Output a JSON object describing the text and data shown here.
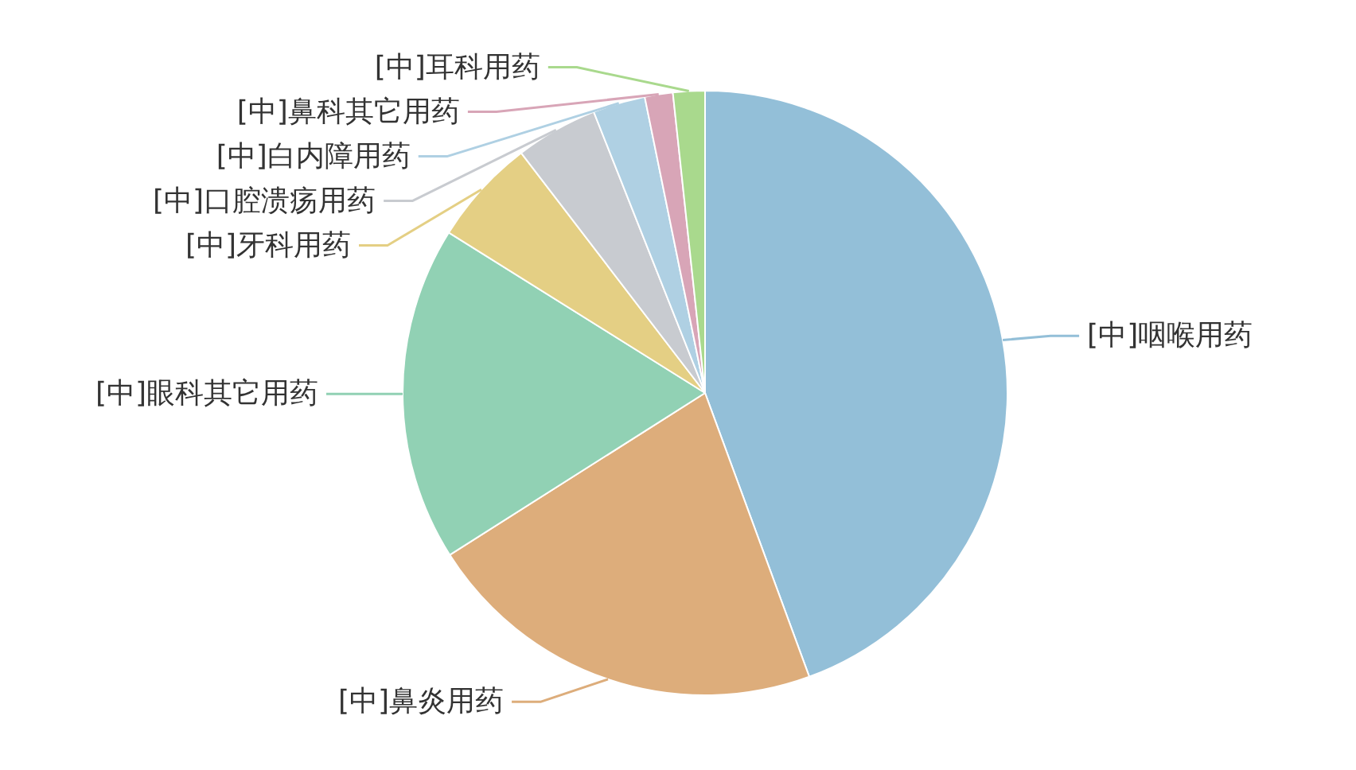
{
  "chart_data": {
    "type": "pie",
    "categories": [
      "[中]咽喉用药",
      "[中]鼻炎用药",
      "[中]眼科其它用药",
      "[中]牙科用药",
      "[中]口腔溃疡用药",
      "[中]白内障用药",
      "[中]鼻科其它用药",
      "[中]耳科用药"
    ],
    "values": [
      44.4,
      21.6,
      17.9,
      5.7,
      4.4,
      2.8,
      1.5,
      1.7
    ],
    "colors": [
      "#93bfd8",
      "#ddad7b",
      "#91d1b4",
      "#e4cf84",
      "#c8cbd0",
      "#afd0e3",
      "#d8a5b7",
      "#a9d98d"
    ]
  }
}
